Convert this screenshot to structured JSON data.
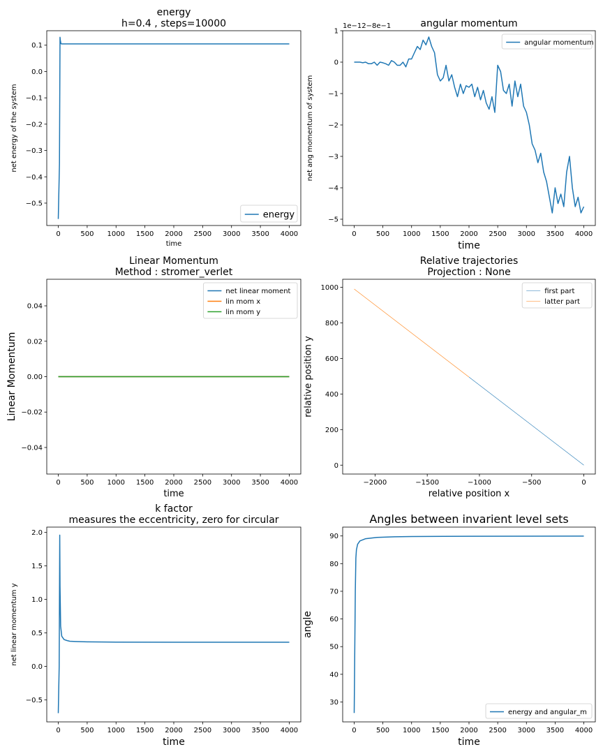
{
  "chart_data": [
    {
      "type": "line",
      "title": [
        "energy",
        "h=0.4 , steps=10000"
      ],
      "xlabel": "time",
      "ylabel": "net energy of the system",
      "xlim": [
        -200,
        4200
      ],
      "ylim": [
        -0.585,
        0.155
      ],
      "xticks": [
        0,
        500,
        1000,
        1500,
        2000,
        2500,
        3000,
        3500,
        4000
      ],
      "yticks": [
        -0.5,
        -0.4,
        -0.3,
        -0.2,
        -0.1,
        0.0,
        0.1
      ],
      "ytick_labels": [
        "−0.5",
        "−0.4",
        "−0.3",
        "−0.2",
        "−0.1",
        "0.0",
        "0.1"
      ],
      "legend_position": "lower-right",
      "legend_size": "large",
      "series": [
        {
          "name": "energy",
          "color": "#1f77b4",
          "x": [
            0,
            20,
            30,
            35,
            45,
            60,
            100,
            4000
          ],
          "y": [
            -0.56,
            -0.35,
            0.13,
            0.12,
            0.106,
            0.105,
            0.105,
            0.105
          ]
        }
      ]
    },
    {
      "type": "line",
      "title": [
        "angular momentum"
      ],
      "offset_text": "1e−12−8e−1",
      "xlabel": "time",
      "ylabel": "net ang momentum of system",
      "xlim": [
        -200,
        4200
      ],
      "ylim": [
        -5.2,
        1.0
      ],
      "xticks": [
        0,
        500,
        1000,
        1500,
        2000,
        2500,
        3000,
        3500,
        4000
      ],
      "yticks": [
        -5,
        -4,
        -3,
        -2,
        -1,
        0,
        1
      ],
      "ytick_labels": [
        "−5",
        "−4",
        "−3",
        "−2",
        "−1",
        "0",
        "1"
      ],
      "legend_position": "upper-right",
      "series": [
        {
          "name": "angular momentum",
          "color": "#1f77b4",
          "x": [
            0,
            50,
            100,
            150,
            200,
            250,
            300,
            350,
            400,
            450,
            500,
            550,
            600,
            650,
            700,
            750,
            800,
            850,
            900,
            950,
            1000,
            1050,
            1100,
            1150,
            1200,
            1250,
            1300,
            1350,
            1400,
            1450,
            1500,
            1550,
            1600,
            1650,
            1700,
            1750,
            1800,
            1850,
            1900,
            1950,
            2000,
            2050,
            2100,
            2150,
            2200,
            2250,
            2300,
            2350,
            2400,
            2450,
            2500,
            2550,
            2600,
            2650,
            2700,
            2750,
            2800,
            2850,
            2900,
            2950,
            3000,
            3050,
            3100,
            3150,
            3200,
            3250,
            3300,
            3350,
            3400,
            3450,
            3500,
            3550,
            3600,
            3650,
            3700,
            3750,
            3800,
            3850,
            3900,
            3950,
            4000
          ],
          "y": [
            0,
            0,
            0,
            -0.02,
            0,
            -0.05,
            -0.05,
            0,
            -0.1,
            0,
            -0.02,
            -0.05,
            -0.1,
            0.05,
            0,
            -0.1,
            -0.1,
            0,
            -0.15,
            0.1,
            0.1,
            0.3,
            0.5,
            0.4,
            0.7,
            0.55,
            0.8,
            0.5,
            0.3,
            -0.4,
            -0.6,
            -0.5,
            -0.1,
            -0.6,
            -0.4,
            -0.8,
            -1.1,
            -0.7,
            -1.0,
            -0.75,
            -0.8,
            -0.7,
            -1.1,
            -0.8,
            -1.2,
            -0.9,
            -1.3,
            -1.5,
            -1.1,
            -1.6,
            -0.1,
            -0.3,
            -0.9,
            -1.0,
            -0.7,
            -1.4,
            -0.6,
            -1.1,
            -0.7,
            -1.4,
            -1.6,
            -2.0,
            -2.6,
            -2.8,
            -3.2,
            -2.9,
            -3.5,
            -3.8,
            -4.3,
            -4.8,
            -4.0,
            -4.5,
            -4.2,
            -4.6,
            -3.5,
            -3.0,
            -4.0,
            -4.6,
            -4.3,
            -4.8,
            -4.6
          ]
        }
      ]
    },
    {
      "type": "line",
      "title": [
        "Linear Momentum",
        "Method : stromer_verlet"
      ],
      "xlabel": "time",
      "ylabel": "Linear Momentum",
      "xlim": [
        -200,
        4200
      ],
      "ylim": [
        -0.055,
        0.055
      ],
      "xticks": [
        0,
        500,
        1000,
        1500,
        2000,
        2500,
        3000,
        3500,
        4000
      ],
      "yticks": [
        -0.04,
        -0.02,
        0.0,
        0.02,
        0.04
      ],
      "ytick_labels": [
        "−0.04",
        "−0.02",
        "0.00",
        "0.02",
        "0.04"
      ],
      "legend_position": "upper-right",
      "series": [
        {
          "name": "net linear moment",
          "color": "#1f77b4",
          "x": [
            0,
            4000
          ],
          "y": [
            0,
            0
          ]
        },
        {
          "name": "lin mom x",
          "color": "#ff7f0e",
          "x": [
            0,
            4000
          ],
          "y": [
            0,
            0
          ]
        },
        {
          "name": "lin mom y",
          "color": "#2ca02c",
          "x": [
            0,
            4000
          ],
          "y": [
            0,
            0
          ]
        }
      ]
    },
    {
      "type": "line",
      "title": [
        "Relative trajectories",
        "Projection : None"
      ],
      "xlabel": "relative position x",
      "ylabel": "relative position y",
      "xlim": [
        -2310,
        110
      ],
      "ylim": [
        -50,
        1045
      ],
      "xticks": [
        -2000,
        -1500,
        -1000,
        -500,
        0
      ],
      "xtick_labels": [
        "−2000",
        "−1500",
        "−1000",
        "−500",
        "0"
      ],
      "yticks": [
        0,
        200,
        400,
        600,
        800,
        1000
      ],
      "legend_position": "upper-right",
      "thin_lines": true,
      "series": [
        {
          "name": "first part",
          "color": "#1f77b4",
          "x": [
            0,
            -1100
          ],
          "y": [
            0,
            495
          ]
        },
        {
          "name": "latter part",
          "color": "#ff7f0e",
          "x": [
            -1100,
            -2200
          ],
          "y": [
            495,
            990
          ]
        }
      ]
    },
    {
      "type": "line",
      "title": [
        "k factor",
        "measures the eccentricity, zero for circular"
      ],
      "xlabel": "time",
      "ylabel": "net linear momentum y",
      "xlim": [
        -200,
        4200
      ],
      "ylim": [
        -0.83,
        2.08
      ],
      "xticks": [
        0,
        500,
        1000,
        1500,
        2000,
        2500,
        3000,
        3500,
        4000
      ],
      "yticks": [
        -0.5,
        0.0,
        0.5,
        1.0,
        1.5,
        2.0
      ],
      "ytick_labels": [
        "−0.5",
        "0.0",
        "0.5",
        "1.0",
        "1.5",
        "2.0"
      ],
      "series": [
        {
          "name": "",
          "color": "#1f77b4",
          "x": [
            0,
            15,
            25,
            30,
            40,
            60,
            100,
            150,
            200,
            300,
            500,
            1000,
            2000,
            4000
          ],
          "y": [
            -0.7,
            0.0,
            1.96,
            1.2,
            0.6,
            0.45,
            0.4,
            0.385,
            0.375,
            0.37,
            0.365,
            0.362,
            0.36,
            0.36
          ]
        }
      ]
    },
    {
      "type": "line",
      "title": [
        "Angles between invarient level sets"
      ],
      "xlabel": "time",
      "ylabel": "angle",
      "xlim": [
        -200,
        4200
      ],
      "ylim": [
        22.8,
        93.2
      ],
      "xticks": [
        0,
        500,
        1000,
        1500,
        2000,
        2500,
        3000,
        3500,
        4000
      ],
      "yticks": [
        30,
        40,
        50,
        60,
        70,
        80,
        90
      ],
      "legend_position": "lower-right",
      "series": [
        {
          "name": "energy and angular_m",
          "color": "#1f77b4",
          "x": [
            0,
            20,
            30,
            40,
            60,
            100,
            200,
            400,
            700,
            1000,
            2000,
            4000
          ],
          "y": [
            26,
            70,
            82,
            85,
            87,
            88.2,
            89.0,
            89.5,
            89.7,
            89.8,
            89.9,
            89.95
          ]
        }
      ]
    }
  ]
}
